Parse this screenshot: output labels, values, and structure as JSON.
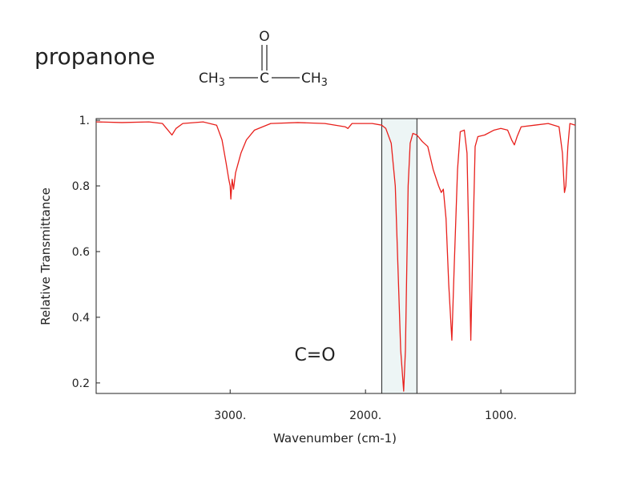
{
  "chart_data": {
    "type": "line",
    "title": "propanone",
    "molecule": {
      "top": "O",
      "center": "C",
      "left": {
        "base": "CH",
        "sub": "3"
      },
      "right": {
        "base": "CH",
        "sub": "3"
      }
    },
    "x_label": "Wavenumber (cm-1)",
    "y_label": "Relative Transmittance",
    "xlim": [
      3990,
      450
    ],
    "ylim": [
      0.168,
      1.005
    ],
    "xticks": [
      {
        "value": 3000,
        "label": "3000."
      },
      {
        "value": 2000,
        "label": "2000."
      },
      {
        "value": 1000,
        "label": "1000."
      }
    ],
    "yticks": [
      {
        "value": 1,
        "label": "1."
      },
      0.8,
      0.6,
      0.4,
      0.2
    ],
    "highlight": {
      "xlim": [
        1880,
        1620
      ],
      "label": "C=O",
      "color": "#edf5f5"
    },
    "series": [
      {
        "name": "propanone",
        "color": "#e8201c",
        "x": [
          3990,
          3800,
          3600,
          3500,
          3460,
          3430,
          3400,
          3350,
          3200,
          3100,
          3060,
          3030,
          3010,
          3000,
          2995,
          2985,
          2975,
          2960,
          2940,
          2920,
          2880,
          2820,
          2700,
          2500,
          2300,
          2150,
          2130,
          2100,
          1950,
          1880,
          1850,
          1810,
          1780,
          1760,
          1740,
          1718,
          1705,
          1695,
          1685,
          1670,
          1650,
          1620,
          1580,
          1540,
          1500,
          1460,
          1440,
          1425,
          1405,
          1385,
          1362,
          1345,
          1320,
          1300,
          1270,
          1250,
          1235,
          1222,
          1208,
          1190,
          1170,
          1120,
          1050,
          1000,
          950,
          920,
          900,
          880,
          850,
          750,
          650,
          570,
          545,
          530,
          520,
          505,
          490,
          450
        ],
        "values": [
          0.995,
          0.993,
          0.995,
          0.99,
          0.97,
          0.955,
          0.975,
          0.99,
          0.995,
          0.985,
          0.94,
          0.87,
          0.82,
          0.8,
          0.76,
          0.82,
          0.79,
          0.84,
          0.87,
          0.9,
          0.94,
          0.97,
          0.99,
          0.993,
          0.99,
          0.98,
          0.975,
          0.99,
          0.99,
          0.985,
          0.975,
          0.93,
          0.8,
          0.55,
          0.3,
          0.175,
          0.3,
          0.55,
          0.8,
          0.93,
          0.96,
          0.955,
          0.935,
          0.92,
          0.85,
          0.8,
          0.78,
          0.79,
          0.7,
          0.5,
          0.33,
          0.55,
          0.85,
          0.965,
          0.97,
          0.9,
          0.6,
          0.33,
          0.6,
          0.92,
          0.95,
          0.955,
          0.97,
          0.975,
          0.97,
          0.94,
          0.925,
          0.95,
          0.98,
          0.985,
          0.99,
          0.98,
          0.9,
          0.78,
          0.8,
          0.92,
          0.99,
          0.985
        ]
      }
    ]
  }
}
